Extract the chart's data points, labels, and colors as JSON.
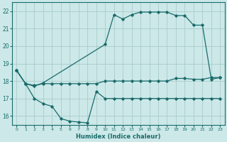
{
  "xlabel": "Humidex (Indice chaleur)",
  "background_color": "#cce8e8",
  "grid_color": "#aacccc",
  "line_color": "#1a6b6b",
  "xlim": [
    -0.5,
    23.5
  ],
  "ylim": [
    15.5,
    22.5
  ],
  "yticks": [
    16,
    17,
    18,
    19,
    20,
    21,
    22
  ],
  "xticks": [
    0,
    1,
    2,
    3,
    4,
    5,
    6,
    7,
    8,
    9,
    10,
    11,
    12,
    13,
    14,
    15,
    16,
    17,
    18,
    19,
    20,
    21,
    22,
    23
  ],
  "line1_x": [
    0,
    1,
    2,
    3,
    4,
    5,
    6,
    7,
    8,
    9,
    10,
    11,
    12,
    13,
    14,
    15,
    16,
    17,
    18,
    19,
    20,
    21,
    22,
    23
  ],
  "line1_y": [
    18.6,
    17.85,
    17.75,
    17.85,
    17.85,
    17.85,
    17.85,
    17.85,
    17.85,
    17.85,
    18.0,
    18.0,
    18.0,
    18.0,
    18.0,
    18.0,
    18.0,
    18.0,
    18.15,
    18.15,
    18.1,
    18.1,
    18.2,
    18.2
  ],
  "line2_x": [
    0,
    1,
    2,
    3,
    10,
    11,
    12,
    13,
    14,
    15,
    16,
    17,
    18,
    19,
    20,
    21,
    22,
    23
  ],
  "line2_y": [
    18.6,
    17.85,
    17.7,
    17.9,
    20.1,
    21.8,
    21.55,
    21.8,
    21.95,
    21.95,
    21.95,
    21.95,
    21.75,
    21.75,
    21.2,
    21.2,
    18.1,
    18.2
  ],
  "line3_x": [
    0,
    1,
    2,
    3,
    4,
    5,
    6,
    7,
    8,
    9,
    10,
    11,
    12,
    13,
    14,
    15,
    16,
    17,
    18,
    19,
    20,
    21,
    22,
    23
  ],
  "line3_y": [
    18.6,
    17.85,
    17.0,
    16.7,
    16.55,
    15.85,
    15.7,
    15.65,
    15.6,
    17.4,
    17.0,
    17.0,
    17.0,
    17.0,
    17.0,
    17.0,
    17.0,
    17.0,
    17.0,
    17.0,
    17.0,
    17.0,
    17.0,
    17.0
  ]
}
